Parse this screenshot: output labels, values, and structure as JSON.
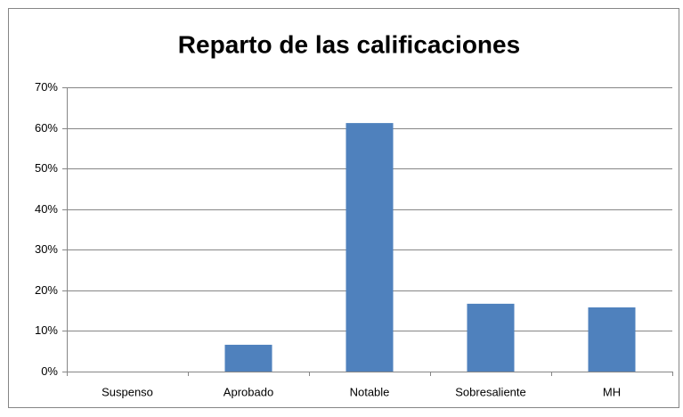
{
  "chart_data": {
    "type": "bar",
    "title": "Reparto de las calificaciones",
    "categories": [
      "Suspenso",
      "Aprobado",
      "Notable",
      "Sobresaliente",
      "MH"
    ],
    "values": [
      0,
      6.6,
      61.2,
      16.7,
      15.8
    ],
    "color": "#4f81bd",
    "ylim": [
      0,
      70
    ],
    "yticks": [
      {
        "value": 0,
        "label": "0%"
      },
      {
        "value": 10,
        "label": "10%"
      },
      {
        "value": 20,
        "label": "20%"
      },
      {
        "value": 30,
        "label": "30%"
      },
      {
        "value": 40,
        "label": "40%"
      },
      {
        "value": 50,
        "label": "50%"
      },
      {
        "value": 60,
        "label": "60%"
      },
      {
        "value": 70,
        "label": "70%"
      }
    ],
    "grid": true
  }
}
